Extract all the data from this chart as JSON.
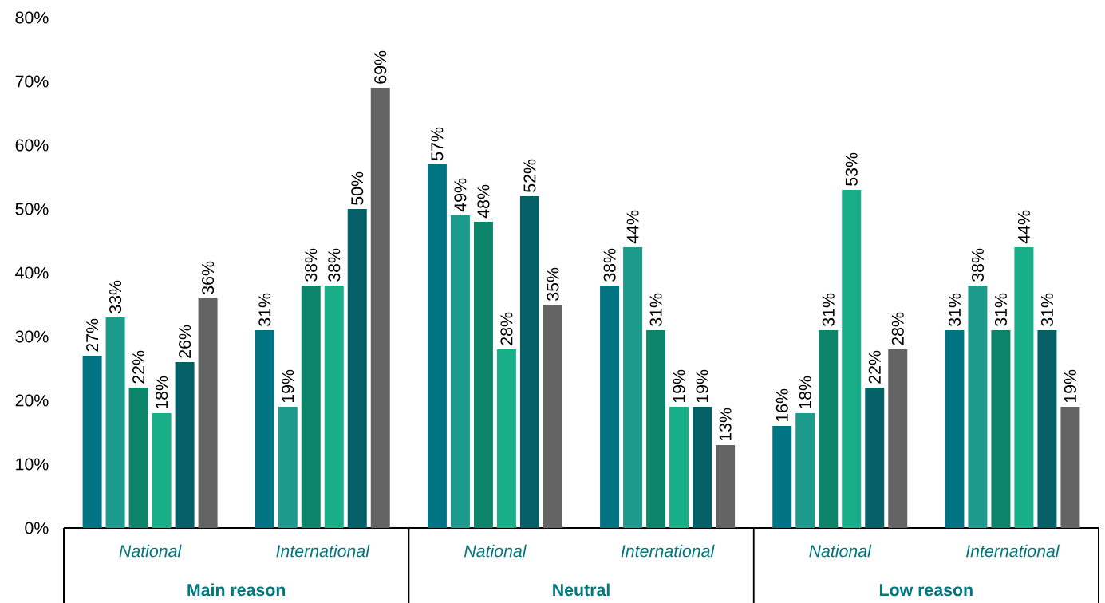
{
  "chart_data": {
    "type": "bar",
    "categories": [
      "National",
      "International",
      "National",
      "International",
      "National",
      "International"
    ],
    "series": [
      {
        "color": "#007483",
        "values": [
          27,
          31,
          57,
          38,
          16,
          31
        ],
        "value_labels": [
          "27%",
          "31%",
          "57%",
          "38%",
          "16%",
          "31%"
        ]
      },
      {
        "color": "#1c9a8c",
        "values": [
          33,
          19,
          49,
          44,
          18,
          38
        ],
        "value_labels": [
          "33%",
          "19%",
          "49%",
          "44%",
          "18%",
          "38%"
        ]
      },
      {
        "color": "#0b8469",
        "values": [
          22,
          38,
          48,
          31,
          31,
          31
        ],
        "value_labels": [
          "22%",
          "38%",
          "48%",
          "31%",
          "31%",
          "31%"
        ]
      },
      {
        "color": "#17ae88",
        "values": [
          18,
          38,
          28,
          19,
          53,
          44
        ],
        "value_labels": [
          "18%",
          "38%",
          "28%",
          "19%",
          "53%",
          "44%"
        ]
      },
      {
        "color": "#055f67",
        "values": [
          26,
          50,
          52,
          19,
          22,
          31
        ],
        "value_labels": [
          "26%",
          "50%",
          "52%",
          "19%",
          "22%",
          "31%"
        ]
      },
      {
        "color": "#646464",
        "values": [
          36,
          69,
          35,
          13,
          28,
          19
        ],
        "value_labels": [
          "36%",
          "69%",
          "35%",
          "13%",
          "28%",
          "19%"
        ]
      }
    ],
    "ylim": [
      0,
      80
    ],
    "yticks": [
      {
        "value": 0,
        "label": "0%"
      },
      {
        "value": 10,
        "label": "10%"
      },
      {
        "value": 20,
        "label": "20%"
      },
      {
        "value": 30,
        "label": "30%"
      },
      {
        "value": 40,
        "label": "40%"
      },
      {
        "value": 50,
        "label": "50%"
      },
      {
        "value": 60,
        "label": "60%"
      },
      {
        "value": 70,
        "label": "70%"
      },
      {
        "value": 80,
        "label": "80%"
      }
    ],
    "annotations": [
      "Main reason",
      "Neutral",
      "Low reason"
    ]
  }
}
